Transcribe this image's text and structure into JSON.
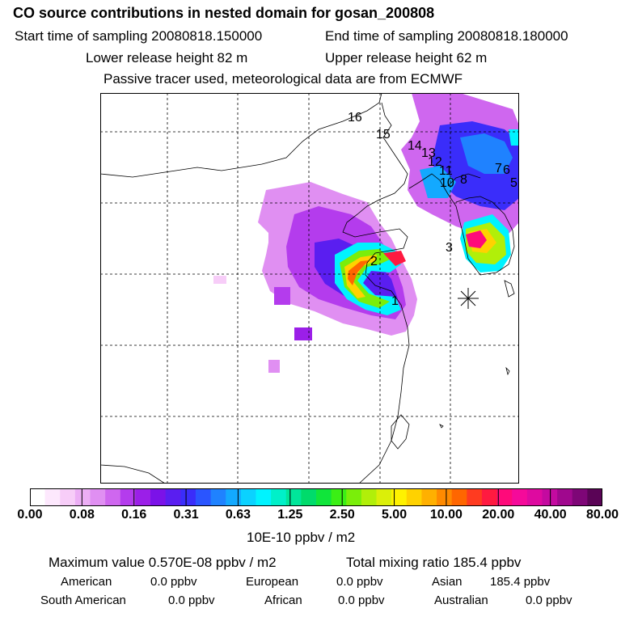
{
  "header": {
    "title": "CO  source contributions in nested domain for gosan_200808",
    "start_label": "Start time of sampling 20080818.150000",
    "end_label": "End time of sampling 20080818.180000",
    "lower_label": "Lower release height   82 m",
    "upper_label": "Upper release height   62 m",
    "note": "Passive tracer used, meteorological data are from ECMWF"
  },
  "chart_data": {
    "type": "heatmap",
    "title": "CO  source contributions in nested domain for gosan_200808",
    "colorbar": {
      "units": "10E-10 ppbv / m2",
      "ticks": [
        "0.00",
        "0.08",
        "0.16",
        "0.31",
        "0.63",
        "1.25",
        "2.50",
        "5.00",
        "10.00",
        "20.00",
        "40.00",
        "80.00"
      ],
      "colors": [
        "#ffffff",
        "#fde8fd",
        "#f7cdf8",
        "#ecaef5",
        "#e08ff2",
        "#cf67ef",
        "#b43ced",
        "#9b1fe8",
        "#7b12e8",
        "#5a1ef0",
        "#3a2dfa",
        "#2a55ff",
        "#1f82ff",
        "#13a9ff",
        "#0bd2ff",
        "#00f3ff",
        "#00f0c9",
        "#00e69a",
        "#00db6b",
        "#10e53a",
        "#3bef15",
        "#7aee0a",
        "#b1ef09",
        "#dbef09",
        "#fff200",
        "#ffd200",
        "#ffb000",
        "#ff8a00",
        "#ff6600",
        "#ff3b20",
        "#ff1a40",
        "#ff0a7a",
        "#f50a9a",
        "#de0aa0",
        "#c40aa0",
        "#a0088e",
        "#7e0677",
        "#5a0456"
      ]
    },
    "source_labels": [
      "1",
      "2",
      "3",
      "5",
      "6",
      "7",
      "8",
      "10",
      "11",
      "12",
      "13",
      "14",
      "15",
      "16"
    ],
    "receptor": "gosan",
    "maximum_value": "0.570E-08",
    "total_mixing_ratio": "185.4"
  },
  "footer": {
    "max_label": "Maximum value  0.570E-08 ppbv / m2",
    "total_label": "Total mixing ratio       185.4 ppbv",
    "american_label": "American",
    "american_value": "0.0 ppbv",
    "european_label": "European",
    "european_value": "0.0 ppbv",
    "asian_label": "Asian",
    "asian_value": "185.4 ppbv",
    "south_american_label": "South American",
    "south_american_value": "0.0 ppbv",
    "african_label": "African",
    "african_value": "0.0 ppbv",
    "australian_label": "Australian",
    "australian_value": "0.0 ppbv"
  }
}
